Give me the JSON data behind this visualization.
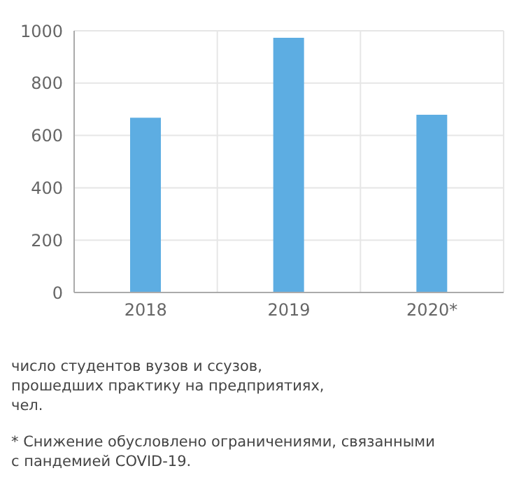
{
  "chart_data": {
    "type": "bar",
    "categories": [
      "2018",
      "2019",
      "2020*"
    ],
    "values": [
      668,
      973,
      679
    ],
    "color": "#5dade2",
    "ylim": [
      0,
      1000
    ],
    "yticks": [
      0,
      200,
      400,
      600,
      800,
      1000
    ],
    "grid": true,
    "annotations": [
      "число студентов вузов и ссузов,\nпрошедших практику на предприятиях,\nчел.",
      "* Снижение обусловлено ограничениями, связанными\nс пандемией COVID-19."
    ]
  }
}
